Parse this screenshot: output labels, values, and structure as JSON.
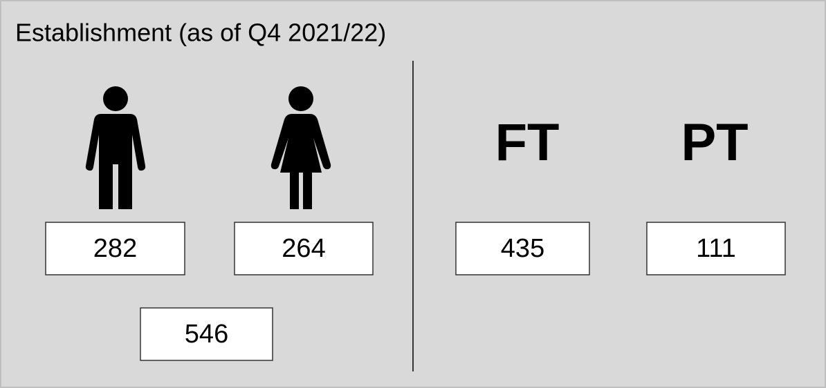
{
  "title": "Establishment (as of Q4 2021/22)",
  "gender": {
    "male": 282,
    "female": 264,
    "total": 546
  },
  "contract": {
    "ft_label": "FT",
    "ft": 435,
    "pt_label": "PT",
    "pt": 111
  }
}
